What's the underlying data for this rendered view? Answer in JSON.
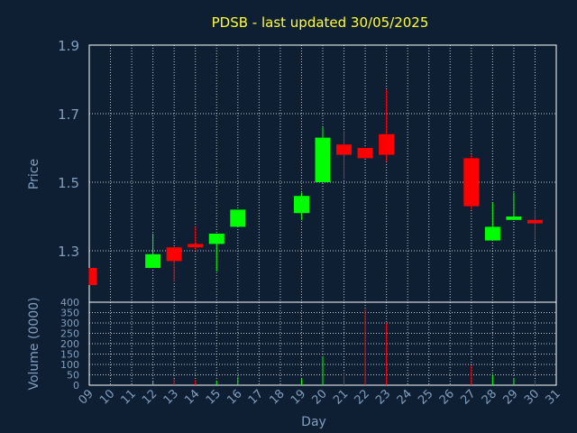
{
  "chart_data": {
    "type": "candlestick",
    "title": "PDSB - last updated 30/05/2025",
    "colors": {
      "background": "#0f1f33",
      "up": "#00ff00",
      "down": "#ff0000",
      "text": "#7f9fbf",
      "title": "#ffff33",
      "grid": "#ffffff"
    },
    "grid": true,
    "price_panel": {
      "ylabel": "Price",
      "ylim": [
        1.15,
        1.9
      ],
      "yticks": [
        1.3,
        1.5,
        1.7,
        1.9
      ],
      "ytick_labels": [
        "1.3",
        "1.5",
        "1.7",
        "1.9"
      ]
    },
    "volume_panel": {
      "ylabel": "Volume (0000)",
      "ylim": [
        0,
        400
      ],
      "yticks": [
        0,
        50,
        100,
        150,
        200,
        250,
        300,
        350,
        400
      ],
      "ytick_labels": [
        "0",
        "50",
        "100",
        "150",
        "200",
        "250",
        "300",
        "350",
        "400"
      ]
    },
    "xlabel": "Day",
    "x_ticks": [
      "09",
      "10",
      "11",
      "12",
      "13",
      "14",
      "15",
      "16",
      "17",
      "18",
      "19",
      "20",
      "21",
      "22",
      "23",
      "24",
      "25",
      "26",
      "27",
      "28",
      "29",
      "30",
      "31"
    ],
    "candles": [
      {
        "day": "09",
        "open": 1.25,
        "close": 1.2,
        "high": 1.25,
        "low": 1.2
      },
      {
        "day": "12",
        "open": 1.25,
        "close": 1.29,
        "high": 1.35,
        "low": 1.25
      },
      {
        "day": "13",
        "open": 1.31,
        "close": 1.27,
        "high": 1.31,
        "low": 1.21
      },
      {
        "day": "14",
        "open": 1.32,
        "close": 1.31,
        "high": 1.37,
        "low": 1.3
      },
      {
        "day": "15",
        "open": 1.32,
        "close": 1.35,
        "high": 1.35,
        "low": 1.24
      },
      {
        "day": "16",
        "open": 1.37,
        "close": 1.42,
        "high": 1.42,
        "low": 1.37
      },
      {
        "day": "19",
        "open": 1.41,
        "close": 1.46,
        "high": 1.47,
        "low": 1.39
      },
      {
        "day": "20",
        "open": 1.5,
        "close": 1.63,
        "high": 1.66,
        "low": 1.5
      },
      {
        "day": "21",
        "open": 1.61,
        "close": 1.58,
        "high": 1.65,
        "low": 1.51
      },
      {
        "day": "22",
        "open": 1.6,
        "close": 1.57,
        "high": 1.6,
        "low": 1.57
      },
      {
        "day": "23",
        "open": 1.64,
        "close": 1.58,
        "high": 1.77,
        "low": 1.56
      },
      {
        "day": "27",
        "open": 1.57,
        "close": 1.43,
        "high": 1.58,
        "low": 1.42
      },
      {
        "day": "28",
        "open": 1.33,
        "close": 1.37,
        "high": 1.44,
        "low": 1.33
      },
      {
        "day": "29",
        "open": 1.39,
        "close": 1.4,
        "high": 1.47,
        "low": 1.39
      },
      {
        "day": "30",
        "open": 1.39,
        "close": 1.38,
        "high": 1.42,
        "low": 1.33
      }
    ],
    "volume": [
      {
        "day": "12",
        "value": 18,
        "direction": "up"
      },
      {
        "day": "13",
        "value": 30,
        "direction": "down"
      },
      {
        "day": "14",
        "value": 25,
        "direction": "down"
      },
      {
        "day": "15",
        "value": 20,
        "direction": "up"
      },
      {
        "day": "16",
        "value": 40,
        "direction": "up"
      },
      {
        "day": "19",
        "value": 30,
        "direction": "up"
      },
      {
        "day": "20",
        "value": 140,
        "direction": "up"
      },
      {
        "day": "21",
        "value": 60,
        "direction": "down"
      },
      {
        "day": "22",
        "value": 365,
        "direction": "down"
      },
      {
        "day": "23",
        "value": 300,
        "direction": "down"
      },
      {
        "day": "27",
        "value": 95,
        "direction": "down"
      },
      {
        "day": "28",
        "value": 50,
        "direction": "up"
      },
      {
        "day": "29",
        "value": 35,
        "direction": "up"
      },
      {
        "day": "30",
        "value": 25,
        "direction": "down"
      }
    ]
  }
}
